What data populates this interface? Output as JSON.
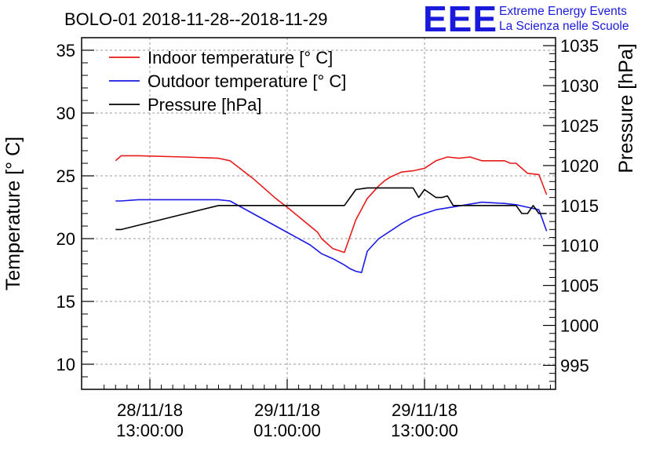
{
  "chart_data": {
    "type": "line",
    "title": "BOLO-01 2018-11-28--2018-11-29",
    "ylabel": "Temperature [° C]",
    "y2label": "Pressure [hPa]",
    "xlabel": "",
    "x_ticks": [
      {
        "line1": "28/11/18",
        "line2": "13:00:00"
      },
      {
        "line1": "29/11/18",
        "line2": "01:00:00"
      },
      {
        "line1": "29/11/18",
        "line2": "13:00:00"
      }
    ],
    "ylim": [
      8,
      36
    ],
    "y2lim": [
      992,
      1036
    ],
    "y_ticks": [
      "10",
      "15",
      "20",
      "25",
      "30",
      "35"
    ],
    "y2_ticks": [
      "995",
      "1000",
      "1005",
      "1010",
      "1015",
      "1020",
      "1025",
      "1030",
      "1035"
    ],
    "grid": true,
    "legend_position": "top-left",
    "series": [
      {
        "name": "Indoor temperature [° C]",
        "color": "#e81a1a",
        "axis": "left",
        "x": [
          "2018-11-28 10:00",
          "2018-11-28 10:30",
          "2018-11-28 12:00",
          "2018-11-28 16:00",
          "2018-11-28 19:00",
          "2018-11-28 20:00",
          "2018-11-28 22:00",
          "2018-11-29 00:00",
          "2018-11-29 01:00",
          "2018-11-29 03:00",
          "2018-11-29 03:40",
          "2018-11-29 04:00",
          "2018-11-29 04:30",
          "2018-11-29 05:00",
          "2018-11-29 06:00",
          "2018-11-29 07:00",
          "2018-11-29 08:00",
          "2018-11-29 09:00",
          "2018-11-29 09:30",
          "2018-11-29 10:00",
          "2018-11-29 11:00",
          "2018-11-29 12:00",
          "2018-11-29 13:00",
          "2018-11-29 14:00",
          "2018-11-29 15:00",
          "2018-11-29 16:00",
          "2018-11-29 17:00",
          "2018-11-29 18:00",
          "2018-11-29 19:00",
          "2018-11-29 20:00",
          "2018-11-29 20:30",
          "2018-11-29 21:00",
          "2018-11-29 21:30",
          "2018-11-29 22:00",
          "2018-11-29 23:00",
          "2018-11-29 23:40"
        ],
        "y": [
          26.2,
          26.6,
          26.6,
          26.5,
          26.4,
          26.2,
          24.8,
          23.2,
          22.5,
          21.0,
          20.5,
          20.0,
          19.6,
          19.2,
          18.9,
          21.5,
          23.2,
          24.2,
          24.6,
          24.9,
          25.3,
          25.4,
          25.6,
          26.2,
          26.5,
          26.4,
          26.5,
          26.2,
          26.2,
          26.2,
          26.0,
          26.0,
          25.6,
          25.2,
          25.1,
          23.5
        ]
      },
      {
        "name": "Outdoor temperature [° C]",
        "color": "#1a1ae6",
        "axis": "left",
        "x": [
          "2018-11-28 10:00",
          "2018-11-28 10:30",
          "2018-11-28 12:00",
          "2018-11-28 16:00",
          "2018-11-28 19:00",
          "2018-11-28 20:00",
          "2018-11-28 22:00",
          "2018-11-29 00:00",
          "2018-11-29 01:00",
          "2018-11-29 03:00",
          "2018-11-29 04:00",
          "2018-11-29 05:00",
          "2018-11-29 06:00",
          "2018-11-29 06:30",
          "2018-11-29 07:00",
          "2018-11-29 07:30",
          "2018-11-29 08:00",
          "2018-11-29 09:00",
          "2018-11-29 10:00",
          "2018-11-29 11:00",
          "2018-11-29 12:00",
          "2018-11-29 13:00",
          "2018-11-29 14:00",
          "2018-11-29 16:00",
          "2018-11-29 18:00",
          "2018-11-29 20:00",
          "2018-11-29 21:00",
          "2018-11-29 22:00",
          "2018-11-29 23:00",
          "2018-11-29 23:40"
        ],
        "y": [
          23.0,
          23.0,
          23.1,
          23.1,
          23.1,
          23.0,
          22.0,
          21.0,
          20.5,
          19.5,
          18.8,
          18.4,
          17.9,
          17.6,
          17.4,
          17.3,
          19.0,
          20.0,
          20.6,
          21.2,
          21.7,
          22.0,
          22.3,
          22.6,
          22.9,
          22.8,
          22.7,
          22.5,
          22.3,
          20.6
        ]
      },
      {
        "name": "Pressure [hPa]",
        "color": "#000000",
        "axis": "right",
        "x": [
          "2018-11-28 10:00",
          "2018-11-28 10:30",
          "2018-11-28 15:00",
          "2018-11-28 19:00",
          "2018-11-28 20:00",
          "2018-11-29 00:00",
          "2018-11-29 04:00",
          "2018-11-29 06:00",
          "2018-11-29 06:30",
          "2018-11-29 07:00",
          "2018-11-29 08:00",
          "2018-11-29 09:00",
          "2018-11-29 10:00",
          "2018-11-29 12:00",
          "2018-11-29 12:30",
          "2018-11-29 13:00",
          "2018-11-29 14:00",
          "2018-11-29 14:30",
          "2018-11-29 15:00",
          "2018-11-29 15:30",
          "2018-11-29 17:00",
          "2018-11-29 20:00",
          "2018-11-29 21:00",
          "2018-11-29 21:30",
          "2018-11-29 22:00",
          "2018-11-29 22:30",
          "2018-11-29 23:00",
          "2018-11-29 23:40"
        ],
        "y": [
          1012.0,
          1012.0,
          1013.6,
          1015.0,
          1015.0,
          1015.0,
          1015.0,
          1015.0,
          1016.0,
          1017.0,
          1017.2,
          1017.2,
          1017.2,
          1017.2,
          1016.0,
          1017.0,
          1016.0,
          1016.0,
          1016.2,
          1015.0,
          1015.0,
          1015.0,
          1015.0,
          1014.0,
          1014.0,
          1015.0,
          1014.0,
          1014.0
        ]
      }
    ]
  },
  "logo": {
    "letters": "EEE",
    "line1": "Extreme Energy Events",
    "line2": "La Scienza nelle Scuole"
  }
}
